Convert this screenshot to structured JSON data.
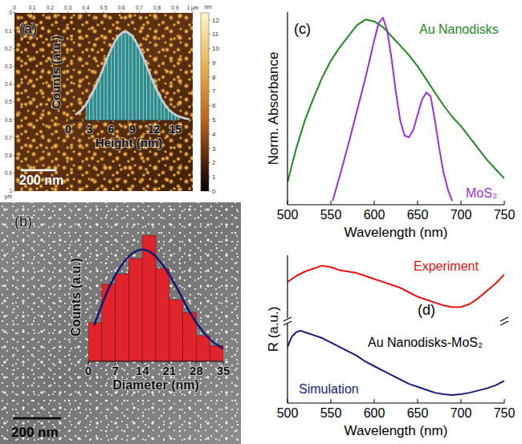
{
  "chart_data": [
    {
      "type": "histogram",
      "title": "(a)",
      "x_label": "Height (nm)",
      "y_label": "Counts (a.u.)",
      "bins": [
        2.5,
        3,
        3.5,
        4,
        4.5,
        5,
        5.5,
        6,
        6.5,
        7,
        7.5,
        8,
        8.5,
        9,
        9.5,
        10,
        10.5,
        11,
        11.5,
        12,
        12.5,
        13,
        13.5,
        14,
        14.5,
        15,
        15.5
      ],
      "counts": [
        0.2,
        0.27,
        0.34,
        0.42,
        0.5,
        0.6,
        0.68,
        0.77,
        0.84,
        0.88,
        0.92,
        0.91,
        0.89,
        0.84,
        0.78,
        0.7,
        0.6,
        0.51,
        0.43,
        0.34,
        0.27,
        0.2,
        0.15,
        0.1,
        0.07,
        0.05
      ],
      "color": "#2f8c8c",
      "xlim": [
        0,
        17
      ],
      "xticks": [
        0,
        3,
        6,
        9,
        12,
        15
      ],
      "ylim": [
        0,
        1
      ],
      "tick_labels": "x",
      "fit": {
        "color": "#c8d2d2",
        "x": [
          1,
          2,
          3,
          4,
          5,
          6,
          7,
          8,
          9,
          10,
          11,
          12,
          13,
          14,
          15,
          16,
          17
        ],
        "values": [
          0.06,
          0.12,
          0.23,
          0.38,
          0.56,
          0.74,
          0.87,
          0.92,
          0.87,
          0.74,
          0.56,
          0.38,
          0.23,
          0.12,
          0.06,
          0.03,
          0.01
        ]
      },
      "image": {
        "xlim": [
          0,
          1
        ],
        "xticks": [
          0,
          0.1,
          0.2,
          0.3,
          0.4,
          0.5,
          0.6,
          0.7,
          0.8,
          0.9,
          {
            "value": 1,
            "label": "1 µm"
          }
        ],
        "yticks": [
          0,
          0.1,
          0.2,
          0.3,
          0.4,
          0.5,
          0.6,
          0.7,
          0.8,
          0.9,
          1
        ],
        "y_unit": "µm",
        "scale_bar": "200 nm",
        "colorbar": {
          "range": [
            0,
            12.5
          ],
          "ticks": [
            0,
            1,
            2,
            3,
            4,
            5,
            6,
            7,
            8,
            9,
            10,
            11,
            12
          ],
          "label": "nm"
        }
      }
    },
    {
      "type": "histogram",
      "title": "(b)",
      "x_label": "Diameter (nm)",
      "y_label": "Counts (a.u.)",
      "bins": [
        0,
        3.5,
        7,
        10.5,
        14,
        17.5,
        21,
        24.5,
        28,
        31.5,
        35
      ],
      "counts": [
        0.3,
        0.6,
        0.68,
        0.8,
        0.98,
        0.72,
        0.48,
        0.38,
        0.2,
        0.12
      ],
      "color": "#e0242c",
      "xlim": [
        0,
        35
      ],
      "xticks": [
        0,
        7,
        14,
        21,
        28,
        35
      ],
      "ylim": [
        0,
        1
      ],
      "tick_labels": "x",
      "fit": {
        "color": "#141a6e",
        "x": [
          1.5,
          5,
          8,
          11,
          14,
          17,
          20,
          23,
          26,
          29,
          32,
          35
        ],
        "values": [
          0.28,
          0.55,
          0.72,
          0.83,
          0.87,
          0.83,
          0.72,
          0.57,
          0.4,
          0.26,
          0.16,
          0.1
        ]
      },
      "image": {
        "scale_bar": "200 nm"
      }
    },
    {
      "type": "line",
      "title": "(c)",
      "x_label": "Wavelength (nm)",
      "y_label": "Norm. Absorbance",
      "xlim": [
        500,
        750
      ],
      "xticks": [
        500,
        550,
        600,
        650,
        700,
        750
      ],
      "ylim": [
        0,
        1.03
      ],
      "tick_labels": "x",
      "series": [
        {
          "name": "Au Nanodisks",
          "color": "#1f8a1f",
          "x": [
            500,
            510,
            520,
            530,
            540,
            550,
            560,
            570,
            580,
            590,
            600,
            610,
            620,
            630,
            640,
            650,
            660,
            670,
            680,
            690,
            700,
            710,
            720,
            730,
            740,
            750
          ],
          "values": [
            0.12,
            0.3,
            0.45,
            0.57,
            0.68,
            0.77,
            0.84,
            0.9,
            0.96,
            0.99,
            0.98,
            0.95,
            0.9,
            0.85,
            0.8,
            0.74,
            0.67,
            0.6,
            0.53,
            0.47,
            0.42,
            0.36,
            0.3,
            0.24,
            0.19,
            0.14
          ]
        },
        {
          "name": "MoS₂",
          "color": "#9b30d9",
          "x": [
            552,
            560,
            570,
            580,
            590,
            600,
            605,
            610,
            615,
            620,
            625,
            630,
            635,
            640,
            645,
            650,
            655,
            660,
            665,
            670,
            675,
            680,
            685,
            690
          ],
          "values": [
            0.02,
            0.15,
            0.32,
            0.5,
            0.68,
            0.88,
            0.97,
            1.0,
            0.93,
            0.78,
            0.6,
            0.45,
            0.37,
            0.36,
            0.4,
            0.48,
            0.56,
            0.6,
            0.58,
            0.45,
            0.3,
            0.17,
            0.08,
            0.02
          ]
        }
      ]
    },
    {
      "type": "line",
      "title": "(d)",
      "x_label": "Wavelength (nm)",
      "y_label": "R (a.u.)",
      "annotation": "Au Nanodisks-MoS₂",
      "xlim": [
        500,
        750
      ],
      "xticks": [
        500,
        550,
        600,
        650,
        700,
        750
      ],
      "ylim": [
        0,
        1
      ],
      "tick_labels": "x",
      "series": [
        {
          "name": "Experiment",
          "color": "#e8120c",
          "x": [
            500,
            510,
            520,
            530,
            540,
            550,
            560,
            570,
            580,
            590,
            600,
            610,
            620,
            630,
            640,
            650,
            660,
            670,
            680,
            690,
            700,
            710,
            720,
            730,
            740,
            750
          ],
          "values": [
            0.82,
            0.86,
            0.89,
            0.91,
            0.93,
            0.92,
            0.9,
            0.89,
            0.88,
            0.86,
            0.84,
            0.82,
            0.8,
            0.78,
            0.75,
            0.72,
            0.7,
            0.68,
            0.66,
            0.65,
            0.65,
            0.67,
            0.71,
            0.76,
            0.81,
            0.87
          ]
        },
        {
          "name": "Simulation",
          "color": "#161c78",
          "x": [
            500,
            505,
            510,
            515,
            520,
            530,
            540,
            550,
            560,
            570,
            580,
            590,
            600,
            610,
            620,
            630,
            640,
            650,
            660,
            670,
            680,
            690,
            700,
            710,
            720,
            730,
            740,
            750
          ],
          "values": [
            0.38,
            0.45,
            0.48,
            0.49,
            0.48,
            0.46,
            0.44,
            0.41,
            0.38,
            0.35,
            0.32,
            0.28,
            0.25,
            0.22,
            0.19,
            0.16,
            0.13,
            0.11,
            0.09,
            0.07,
            0.06,
            0.055,
            0.06,
            0.07,
            0.085,
            0.1,
            0.12,
            0.15
          ]
        }
      ]
    }
  ]
}
